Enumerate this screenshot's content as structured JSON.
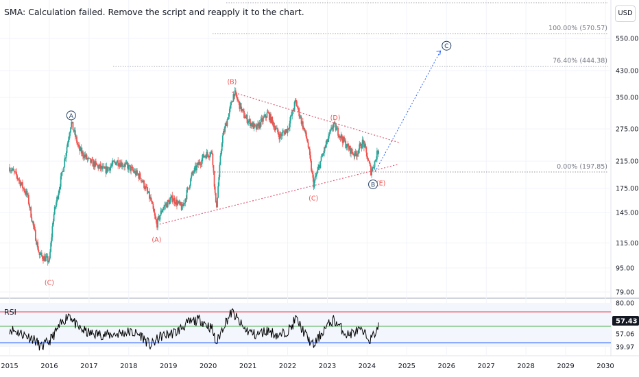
{
  "error_message": "SMA: Calculation failed. Remove the script and reapply it to the chart.",
  "currency_button": "USD",
  "colors": {
    "up": "#26a69a",
    "down": "#ef5350",
    "trendline": "#e05b73",
    "projection": "#2962ff",
    "wave_circle": "#1e3a5f",
    "rsi_line": "#000000",
    "rsi_upper": "#f23645",
    "rsi_mid": "#4caf50",
    "rsi_lower": "#2962ff",
    "rsi_badge": "#131722"
  },
  "chart_data": [
    {
      "type": "candlestick",
      "scale": "log",
      "y_ticks": [
        550.0,
        430.0,
        350.0,
        275.0,
        215.0,
        175.0,
        145.0,
        115.0,
        95.0,
        79.0
      ],
      "x_ticks": [
        "2015",
        "2016",
        "2017",
        "2018",
        "2019",
        "2020",
        "2021",
        "2022",
        "2023",
        "2024",
        "2025",
        "2026",
        "2027",
        "2028",
        "2029",
        "2030"
      ],
      "price_path": [
        [
          2015.0,
          205
        ],
        [
          2015.2,
          190
        ],
        [
          2015.45,
          165
        ],
        [
          2015.6,
          130
        ],
        [
          2015.75,
          105
        ],
        [
          2016.0,
          100
        ],
        [
          2016.1,
          140
        ],
        [
          2016.35,
          205
        ],
        [
          2016.55,
          290
        ],
        [
          2016.75,
          235
        ],
        [
          2017.0,
          215
        ],
        [
          2017.4,
          200
        ],
        [
          2017.7,
          215
        ],
        [
          2018.0,
          205
        ],
        [
          2018.3,
          190
        ],
        [
          2018.55,
          160
        ],
        [
          2018.7,
          132
        ],
        [
          2018.85,
          150
        ],
        [
          2019.1,
          162
        ],
        [
          2019.35,
          150
        ],
        [
          2019.6,
          195
        ],
        [
          2019.9,
          225
        ],
        [
          2020.1,
          230
        ],
        [
          2020.2,
          148
        ],
        [
          2020.35,
          255
        ],
        [
          2020.55,
          320
        ],
        [
          2020.65,
          365
        ],
        [
          2020.9,
          305
        ],
        [
          2021.2,
          275
        ],
        [
          2021.5,
          310
        ],
        [
          2021.8,
          260
        ],
        [
          2022.0,
          275
        ],
        [
          2022.2,
          340
        ],
        [
          2022.5,
          250
        ],
        [
          2022.65,
          180
        ],
        [
          2022.9,
          230
        ],
        [
          2023.15,
          285
        ],
        [
          2023.5,
          240
        ],
        [
          2023.7,
          225
        ],
        [
          2023.9,
          250
        ],
        [
          2024.1,
          198
        ],
        [
          2024.2,
          215
        ],
        [
          2024.3,
          240
        ]
      ],
      "fib_levels": [
        {
          "label": "100.00% (570.57)",
          "value": 570.57
        },
        {
          "label": "76.40% (444.38)",
          "value": 444.38
        },
        {
          "label": "0.00% (197.85)",
          "value": 197.85
        }
      ],
      "wave_labels": [
        {
          "text": "(C)",
          "x": 2016.0,
          "y": 85,
          "style": "paren"
        },
        {
          "text": "A",
          "x": 2016.55,
          "y": 305,
          "style": "circle"
        },
        {
          "text": "(A)",
          "x": 2018.7,
          "y": 118,
          "style": "paren"
        },
        {
          "text": "(B)",
          "x": 2020.6,
          "y": 395,
          "style": "paren"
        },
        {
          "text": "(C)",
          "x": 2022.65,
          "y": 162,
          "style": "paren"
        },
        {
          "text": "(D)",
          "x": 2023.2,
          "y": 300,
          "style": "paren"
        },
        {
          "text": "B",
          "x": 2024.15,
          "y": 180,
          "style": "circle"
        },
        {
          "text": "(E)",
          "x": 2024.35,
          "y": 182,
          "style": "paren"
        },
        {
          "text": "C",
          "x": 2026.0,
          "y": 520,
          "style": "circle"
        }
      ],
      "trendlines": [
        {
          "from": [
            2018.7,
            132
          ],
          "to": [
            2024.8,
            210
          ]
        },
        {
          "from": [
            2020.6,
            365
          ],
          "to": [
            2024.8,
            248
          ]
        }
      ],
      "projection": {
        "from": [
          2024.2,
          198
        ],
        "to": [
          2025.85,
          500
        ]
      }
    },
    {
      "type": "line",
      "title": "RSI",
      "levels": [
        80.0,
        57.06,
        39.97
      ],
      "current_value": "57.43",
      "y_ticks": [
        "80.00",
        "57.06",
        "39.97"
      ],
      "rsi_path": [
        [
          2015.0,
          58
        ],
        [
          2015.3,
          52
        ],
        [
          2015.6,
          45
        ],
        [
          2015.8,
          34
        ],
        [
          2016.0,
          42
        ],
        [
          2016.3,
          64
        ],
        [
          2016.5,
          78
        ],
        [
          2016.7,
          60
        ],
        [
          2017.0,
          52
        ],
        [
          2017.5,
          50
        ],
        [
          2018.0,
          54
        ],
        [
          2018.3,
          50
        ],
        [
          2018.55,
          36
        ],
        [
          2018.8,
          48
        ],
        [
          2019.2,
          54
        ],
        [
          2019.5,
          66
        ],
        [
          2019.8,
          70
        ],
        [
          2020.1,
          58
        ],
        [
          2020.2,
          38
        ],
        [
          2020.4,
          64
        ],
        [
          2020.6,
          80
        ],
        [
          2020.9,
          58
        ],
        [
          2021.2,
          50
        ],
        [
          2021.5,
          56
        ],
        [
          2021.8,
          48
        ],
        [
          2022.1,
          60
        ],
        [
          2022.2,
          72
        ],
        [
          2022.5,
          46
        ],
        [
          2022.65,
          36
        ],
        [
          2022.9,
          56
        ],
        [
          2023.15,
          70
        ],
        [
          2023.5,
          50
        ],
        [
          2023.8,
          56
        ],
        [
          2024.1,
          44
        ],
        [
          2024.3,
          62
        ]
      ]
    }
  ]
}
